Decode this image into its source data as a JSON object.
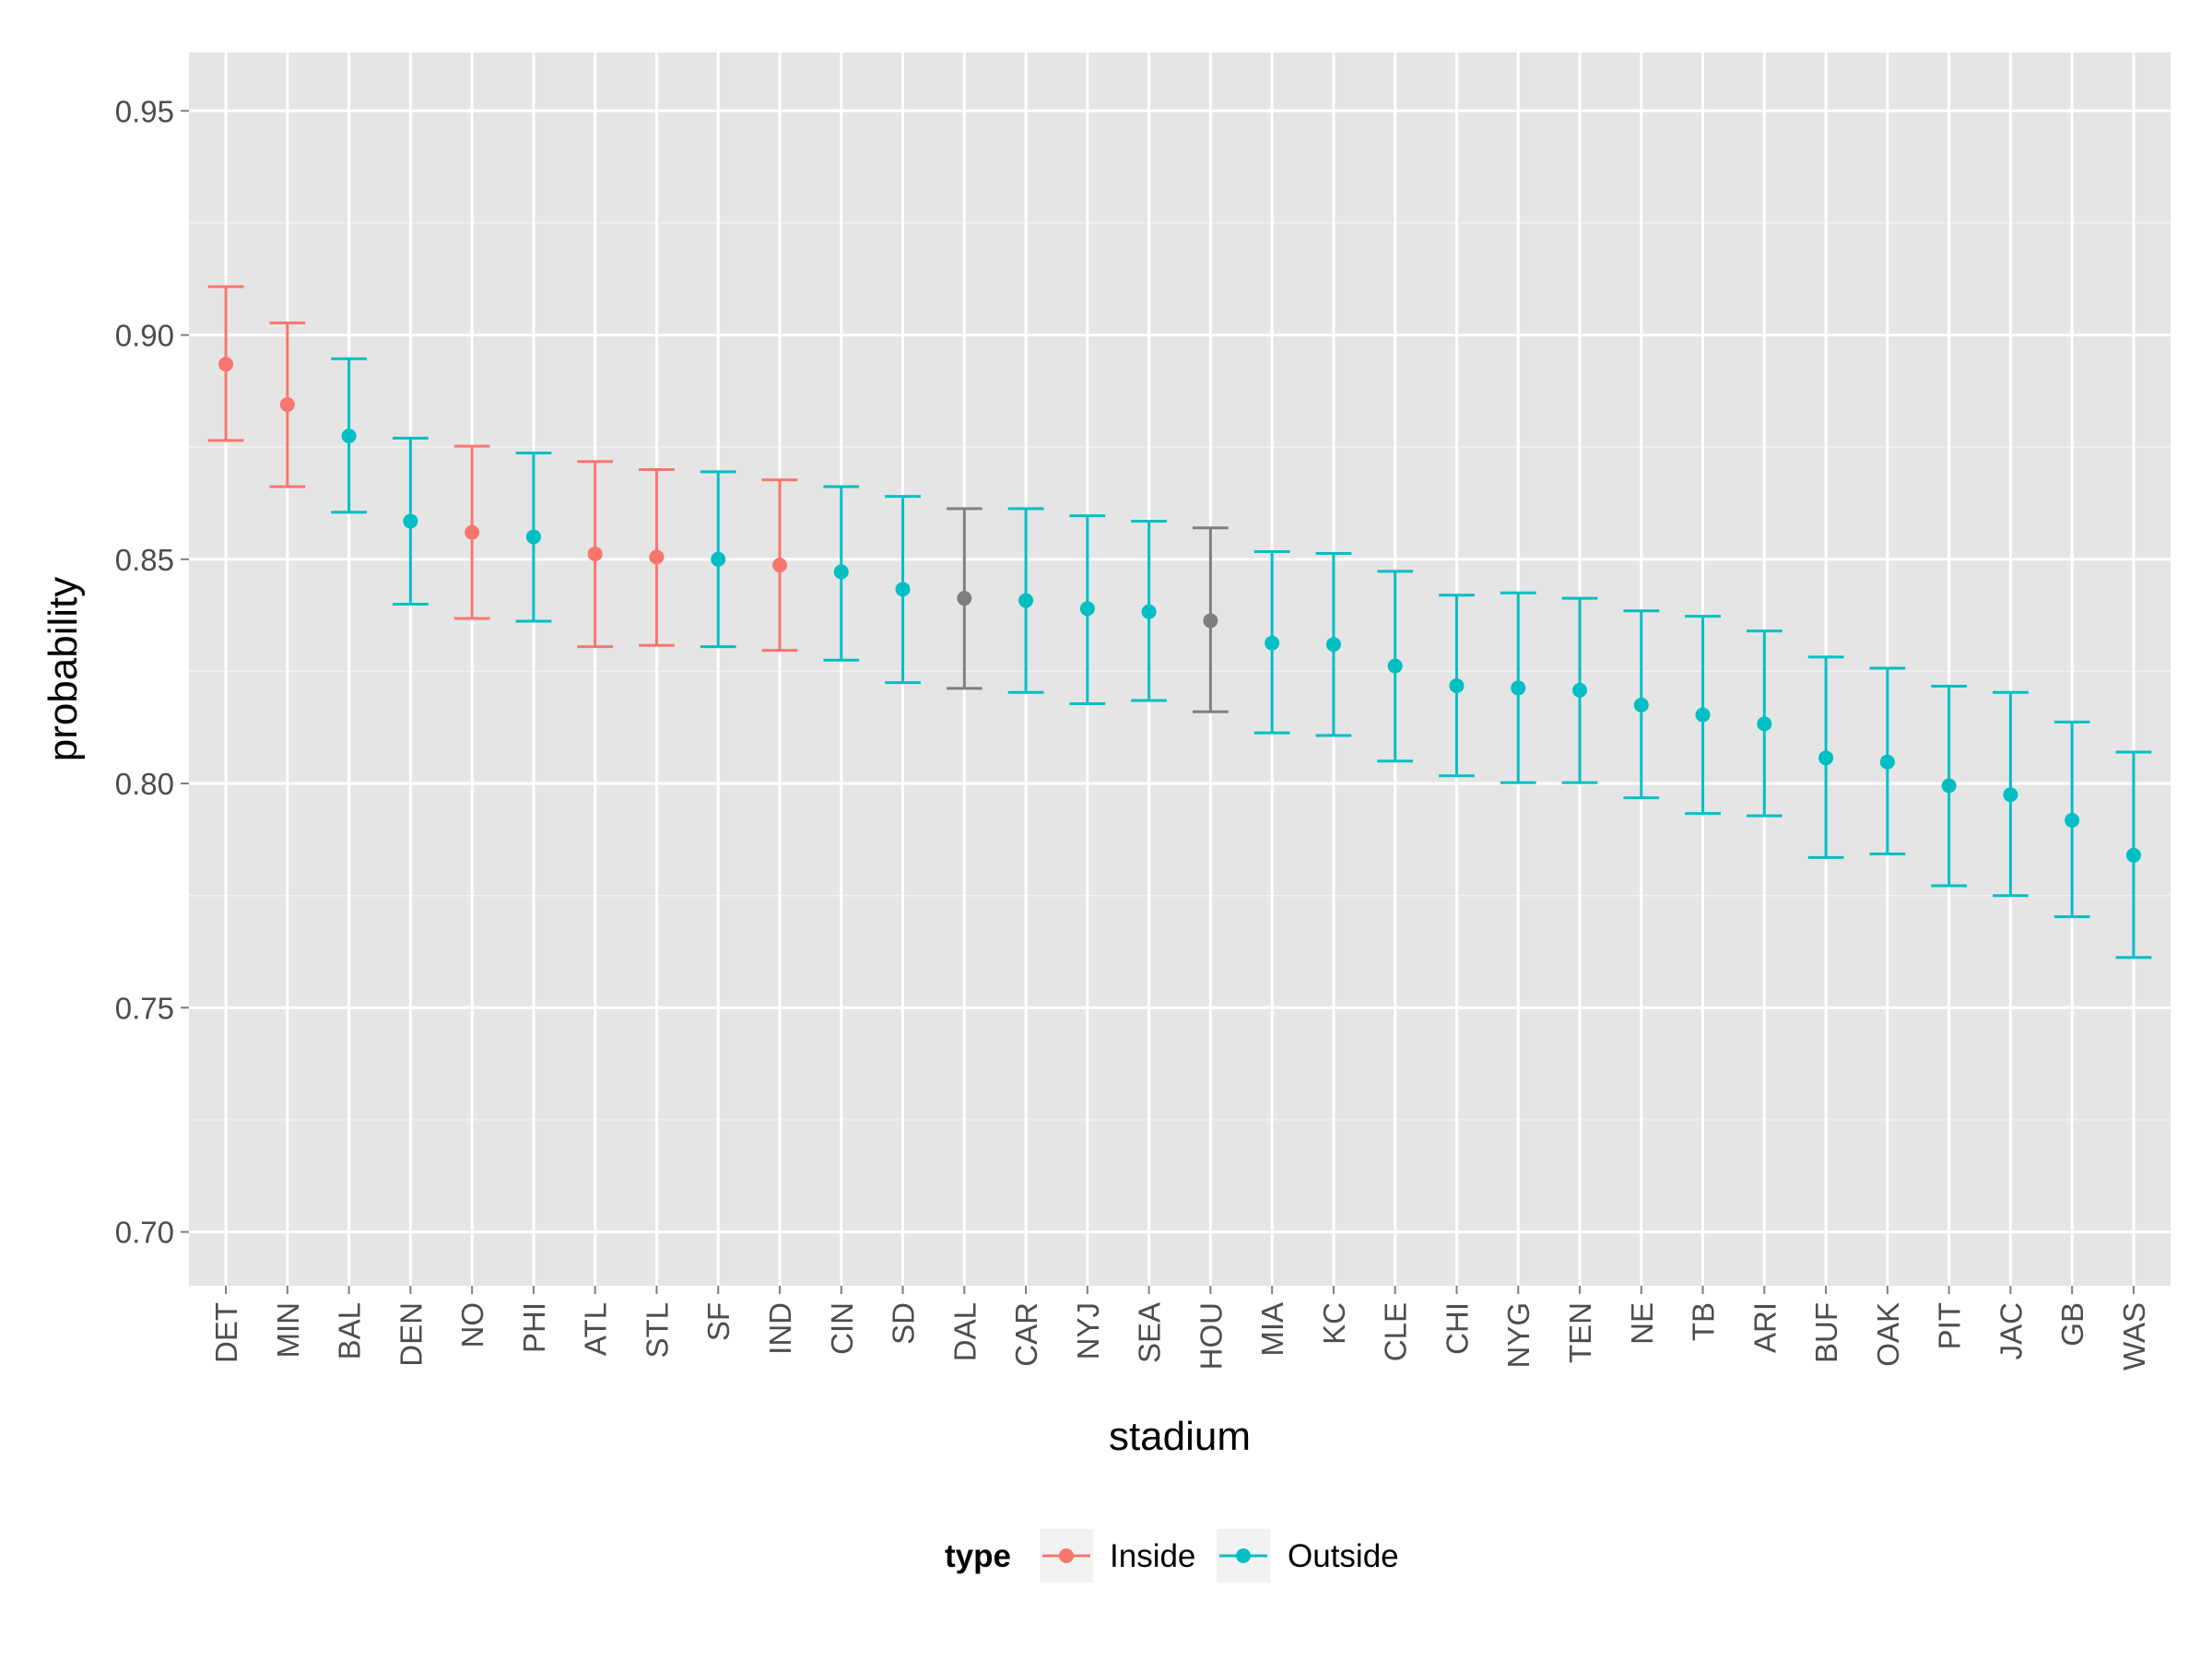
{
  "chart_data": {
    "type": "scatter",
    "subtype": "errorbar",
    "title": "",
    "xlabel": "stadium",
    "ylabel": "probability",
    "ylim": [
      0.688,
      0.963
    ],
    "y_ticks": [
      "0.70",
      "0.75",
      "0.80",
      "0.85",
      "0.90",
      "0.95"
    ],
    "y_tick_values": [
      0.7,
      0.75,
      0.8,
      0.85,
      0.9,
      0.95
    ],
    "grid": true,
    "legend": {
      "title": "type",
      "position": "bottom",
      "entries": [
        {
          "label": "Inside",
          "color": "#F8766D"
        },
        {
          "label": "Outside",
          "color": "#00BFC4"
        }
      ]
    },
    "colors": {
      "Inside": "#F8766D",
      "Outside": "#00BFC4",
      "Other": "#7F7F7F"
    },
    "points": [
      {
        "stadium": "DET",
        "type": "Inside",
        "y": 0.8935,
        "lower": 0.8765,
        "upper": 0.9108
      },
      {
        "stadium": "MIN",
        "type": "Inside",
        "y": 0.8845,
        "lower": 0.8662,
        "upper": 0.9027
      },
      {
        "stadium": "BAL",
        "type": "Outside",
        "y": 0.8775,
        "lower": 0.8605,
        "upper": 0.8947
      },
      {
        "stadium": "DEN",
        "type": "Outside",
        "y": 0.8585,
        "lower": 0.84,
        "upper": 0.877
      },
      {
        "stadium": "NO",
        "type": "Inside",
        "y": 0.856,
        "lower": 0.8368,
        "upper": 0.8752
      },
      {
        "stadium": "PHI",
        "type": "Outside",
        "y": 0.855,
        "lower": 0.8362,
        "upper": 0.8737
      },
      {
        "stadium": "ATL",
        "type": "Inside",
        "y": 0.8512,
        "lower": 0.8305,
        "upper": 0.8718
      },
      {
        "stadium": "STL",
        "type": "Inside",
        "y": 0.8505,
        "lower": 0.8308,
        "upper": 0.87
      },
      {
        "stadium": "SF",
        "type": "Outside",
        "y": 0.85,
        "lower": 0.8305,
        "upper": 0.8695
      },
      {
        "stadium": "IND",
        "type": "Inside",
        "y": 0.8487,
        "lower": 0.8297,
        "upper": 0.8677
      },
      {
        "stadium": "CIN",
        "type": "Outside",
        "y": 0.8472,
        "lower": 0.8275,
        "upper": 0.8662
      },
      {
        "stadium": "SD",
        "type": "Outside",
        "y": 0.8433,
        "lower": 0.8225,
        "upper": 0.864
      },
      {
        "stadium": "DAL",
        "type": "Other",
        "y": 0.8413,
        "lower": 0.8212,
        "upper": 0.8613
      },
      {
        "stadium": "CAR",
        "type": "Outside",
        "y": 0.8408,
        "lower": 0.8203,
        "upper": 0.8613
      },
      {
        "stadium": "NYJ",
        "type": "Outside",
        "y": 0.839,
        "lower": 0.8178,
        "upper": 0.8597
      },
      {
        "stadium": "SEA",
        "type": "Outside",
        "y": 0.8383,
        "lower": 0.8185,
        "upper": 0.8585
      },
      {
        "stadium": "HOU",
        "type": "Other",
        "y": 0.8363,
        "lower": 0.816,
        "upper": 0.857
      },
      {
        "stadium": "MIA",
        "type": "Outside",
        "y": 0.8313,
        "lower": 0.8113,
        "upper": 0.8517
      },
      {
        "stadium": "KC",
        "type": "Outside",
        "y": 0.831,
        "lower": 0.8107,
        "upper": 0.8513
      },
      {
        "stadium": "CLE",
        "type": "Outside",
        "y": 0.8262,
        "lower": 0.805,
        "upper": 0.8473
      },
      {
        "stadium": "CHI",
        "type": "Outside",
        "y": 0.8218,
        "lower": 0.8017,
        "upper": 0.842
      },
      {
        "stadium": "NYG",
        "type": "Outside",
        "y": 0.8213,
        "lower": 0.8002,
        "upper": 0.8425
      },
      {
        "stadium": "TEN",
        "type": "Outside",
        "y": 0.8208,
        "lower": 0.8002,
        "upper": 0.8413
      },
      {
        "stadium": "NE",
        "type": "Outside",
        "y": 0.8175,
        "lower": 0.7968,
        "upper": 0.8385
      },
      {
        "stadium": "TB",
        "type": "Outside",
        "y": 0.8153,
        "lower": 0.7933,
        "upper": 0.8373
      },
      {
        "stadium": "ARI",
        "type": "Outside",
        "y": 0.8133,
        "lower": 0.7928,
        "upper": 0.834
      },
      {
        "stadium": "BUF",
        "type": "Outside",
        "y": 0.8057,
        "lower": 0.7835,
        "upper": 0.8282
      },
      {
        "stadium": "OAK",
        "type": "Outside",
        "y": 0.8048,
        "lower": 0.7843,
        "upper": 0.8257
      },
      {
        "stadium": "PIT",
        "type": "Outside",
        "y": 0.7995,
        "lower": 0.7772,
        "upper": 0.8217
      },
      {
        "stadium": "JAC",
        "type": "Outside",
        "y": 0.7975,
        "lower": 0.775,
        "upper": 0.8203
      },
      {
        "stadium": "GB",
        "type": "Outside",
        "y": 0.7918,
        "lower": 0.7703,
        "upper": 0.8137
      },
      {
        "stadium": "WAS",
        "type": "Outside",
        "y": 0.784,
        "lower": 0.7612,
        "upper": 0.807
      }
    ]
  }
}
